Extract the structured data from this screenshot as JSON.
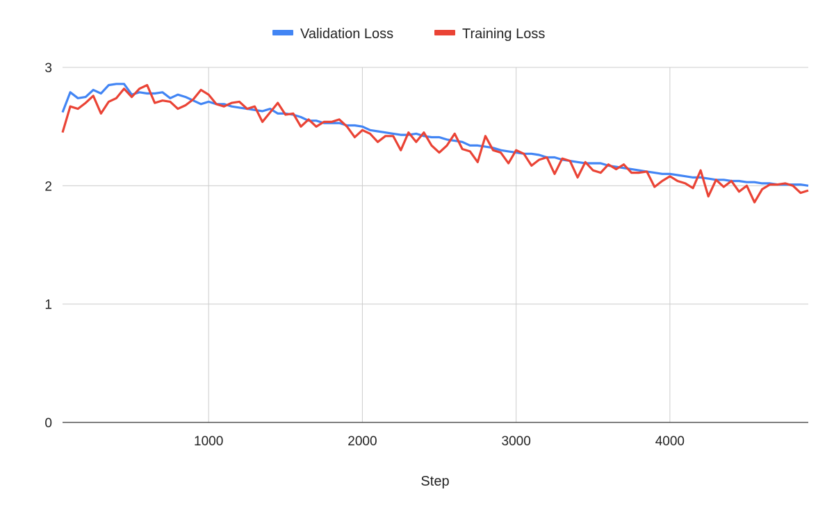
{
  "chart_data": {
    "type": "line",
    "title": "",
    "xlabel": "Step",
    "ylabel": "",
    "xlim": [
      50,
      4900
    ],
    "ylim": [
      0,
      3
    ],
    "x_ticks": [
      1000,
      2000,
      3000,
      4000
    ],
    "y_ticks": [
      0,
      1,
      2,
      3
    ],
    "grid": true,
    "legend_position": "top",
    "x": [
      50,
      100,
      150,
      200,
      250,
      300,
      350,
      400,
      450,
      500,
      550,
      600,
      650,
      700,
      750,
      800,
      850,
      900,
      950,
      1000,
      1050,
      1100,
      1150,
      1200,
      1250,
      1300,
      1350,
      1400,
      1450,
      1500,
      1550,
      1600,
      1650,
      1700,
      1750,
      1800,
      1850,
      1900,
      1950,
      2000,
      2050,
      2100,
      2150,
      2200,
      2250,
      2300,
      2350,
      2400,
      2450,
      2500,
      2550,
      2600,
      2650,
      2700,
      2750,
      2800,
      2850,
      2900,
      2950,
      3000,
      3050,
      3100,
      3150,
      3200,
      3250,
      3300,
      3350,
      3400,
      3450,
      3500,
      3550,
      3600,
      3650,
      3700,
      3750,
      3800,
      3850,
      3900,
      3950,
      4000,
      4050,
      4100,
      4150,
      4200,
      4250,
      4300,
      4350,
      4400,
      4450,
      4500,
      4550,
      4600,
      4650,
      4700,
      4750,
      4800,
      4850,
      4900
    ],
    "series": [
      {
        "name": "Validation Loss",
        "color": "#4285f4",
        "values": [
          2.62,
          2.79,
          2.74,
          2.75,
          2.81,
          2.78,
          2.85,
          2.86,
          2.86,
          2.77,
          2.79,
          2.78,
          2.78,
          2.79,
          2.74,
          2.77,
          2.75,
          2.72,
          2.69,
          2.71,
          2.69,
          2.69,
          2.67,
          2.66,
          2.65,
          2.64,
          2.63,
          2.65,
          2.61,
          2.61,
          2.6,
          2.58,
          2.55,
          2.55,
          2.53,
          2.53,
          2.53,
          2.51,
          2.51,
          2.5,
          2.47,
          2.46,
          2.45,
          2.44,
          2.43,
          2.43,
          2.44,
          2.42,
          2.41,
          2.41,
          2.39,
          2.38,
          2.37,
          2.34,
          2.34,
          2.33,
          2.32,
          2.3,
          2.29,
          2.28,
          2.27,
          2.27,
          2.26,
          2.24,
          2.24,
          2.22,
          2.21,
          2.2,
          2.19,
          2.19,
          2.19,
          2.17,
          2.16,
          2.15,
          2.14,
          2.13,
          2.12,
          2.11,
          2.1,
          2.1,
          2.09,
          2.08,
          2.07,
          2.07,
          2.06,
          2.05,
          2.05,
          2.04,
          2.04,
          2.03,
          2.03,
          2.02,
          2.02,
          2.01,
          2.01,
          2.01,
          2.01,
          2.0
        ]
      },
      {
        "name": "Training Loss",
        "color": "#ea4335",
        "values": [
          2.45,
          2.67,
          2.65,
          2.7,
          2.76,
          2.61,
          2.71,
          2.74,
          2.82,
          2.75,
          2.82,
          2.85,
          2.7,
          2.72,
          2.71,
          2.65,
          2.68,
          2.73,
          2.81,
          2.77,
          2.69,
          2.67,
          2.7,
          2.71,
          2.65,
          2.67,
          2.54,
          2.62,
          2.7,
          2.6,
          2.61,
          2.5,
          2.56,
          2.5,
          2.54,
          2.54,
          2.56,
          2.5,
          2.41,
          2.47,
          2.44,
          2.37,
          2.42,
          2.42,
          2.3,
          2.45,
          2.37,
          2.45,
          2.34,
          2.28,
          2.34,
          2.44,
          2.31,
          2.29,
          2.2,
          2.42,
          2.3,
          2.28,
          2.19,
          2.3,
          2.27,
          2.17,
          2.22,
          2.24,
          2.1,
          2.23,
          2.21,
          2.07,
          2.2,
          2.13,
          2.11,
          2.18,
          2.14,
          2.18,
          2.11,
          2.11,
          2.12,
          1.99,
          2.04,
          2.08,
          2.04,
          2.02,
          1.98,
          2.13,
          1.91,
          2.05,
          1.99,
          2.04,
          1.95,
          2.0,
          1.86,
          1.97,
          2.01,
          2.01,
          2.02,
          2.0,
          1.94,
          1.96
        ]
      }
    ]
  }
}
